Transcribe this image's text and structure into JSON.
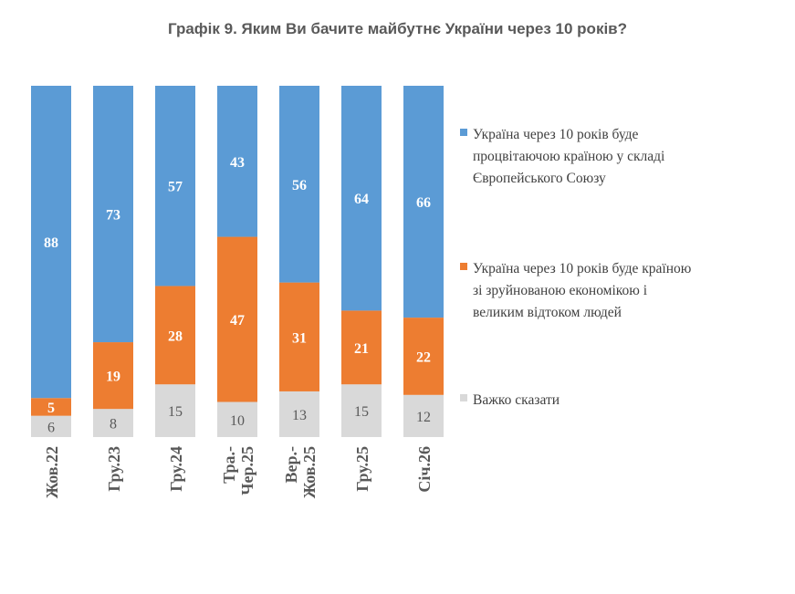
{
  "title": "Графік 9. Яким Ви бачите майбутнє України через 10 років?",
  "chart_data": {
    "type": "bar",
    "stacked": true,
    "orientation": "vertical",
    "categories": [
      "Жов.22",
      "Гру.23",
      "Гру.24",
      "Тра.-Чер.25",
      "Вер.-Жов.25",
      "Гру.25",
      "Січ.26"
    ],
    "category_label_lines": [
      [
        "Жов.22"
      ],
      [
        "Гру.23"
      ],
      [
        "Гру.24"
      ],
      [
        "Тра.-",
        "Чер.25"
      ],
      [
        "Вер.-",
        "Жов.25"
      ],
      [
        "Гру.25"
      ],
      [
        "Січ.26"
      ]
    ],
    "series": [
      {
        "name": "Важко сказати",
        "color": "#d9d9d9",
        "label_color": "#595959",
        "values": [
          6,
          8,
          15,
          10,
          13,
          15,
          12
        ]
      },
      {
        "name": "Україна через 10 років буде країною зі зруйнованою економікою і великим відтоком людей",
        "color": "#ed7d31",
        "label_color": "#ffffff",
        "values": [
          5,
          19,
          28,
          47,
          31,
          21,
          22
        ]
      },
      {
        "name": "Україна через 10 років буде процвітаючою країною у складі Європейського Союзу",
        "color": "#5b9bd5",
        "label_color": "#ffffff",
        "values": [
          88,
          73,
          57,
          43,
          56,
          64,
          66
        ]
      }
    ],
    "legend": {
      "placement": "right",
      "items": [
        {
          "lines": [
            "Україна через 10 років буде",
            "процвітаючою країною у складі",
            "Європейського Союзу"
          ],
          "color": "#5b9bd5"
        },
        {
          "lines": [
            "Україна через 10 років буде країною",
            "зі зруйнованою економікою і",
            "великим відтоком людей"
          ],
          "color": "#ed7d31"
        },
        {
          "lines": [
            "Важко сказати"
          ],
          "color": "#d9d9d9"
        }
      ]
    },
    "ylim": [
      0,
      100
    ],
    "grid": false
  }
}
